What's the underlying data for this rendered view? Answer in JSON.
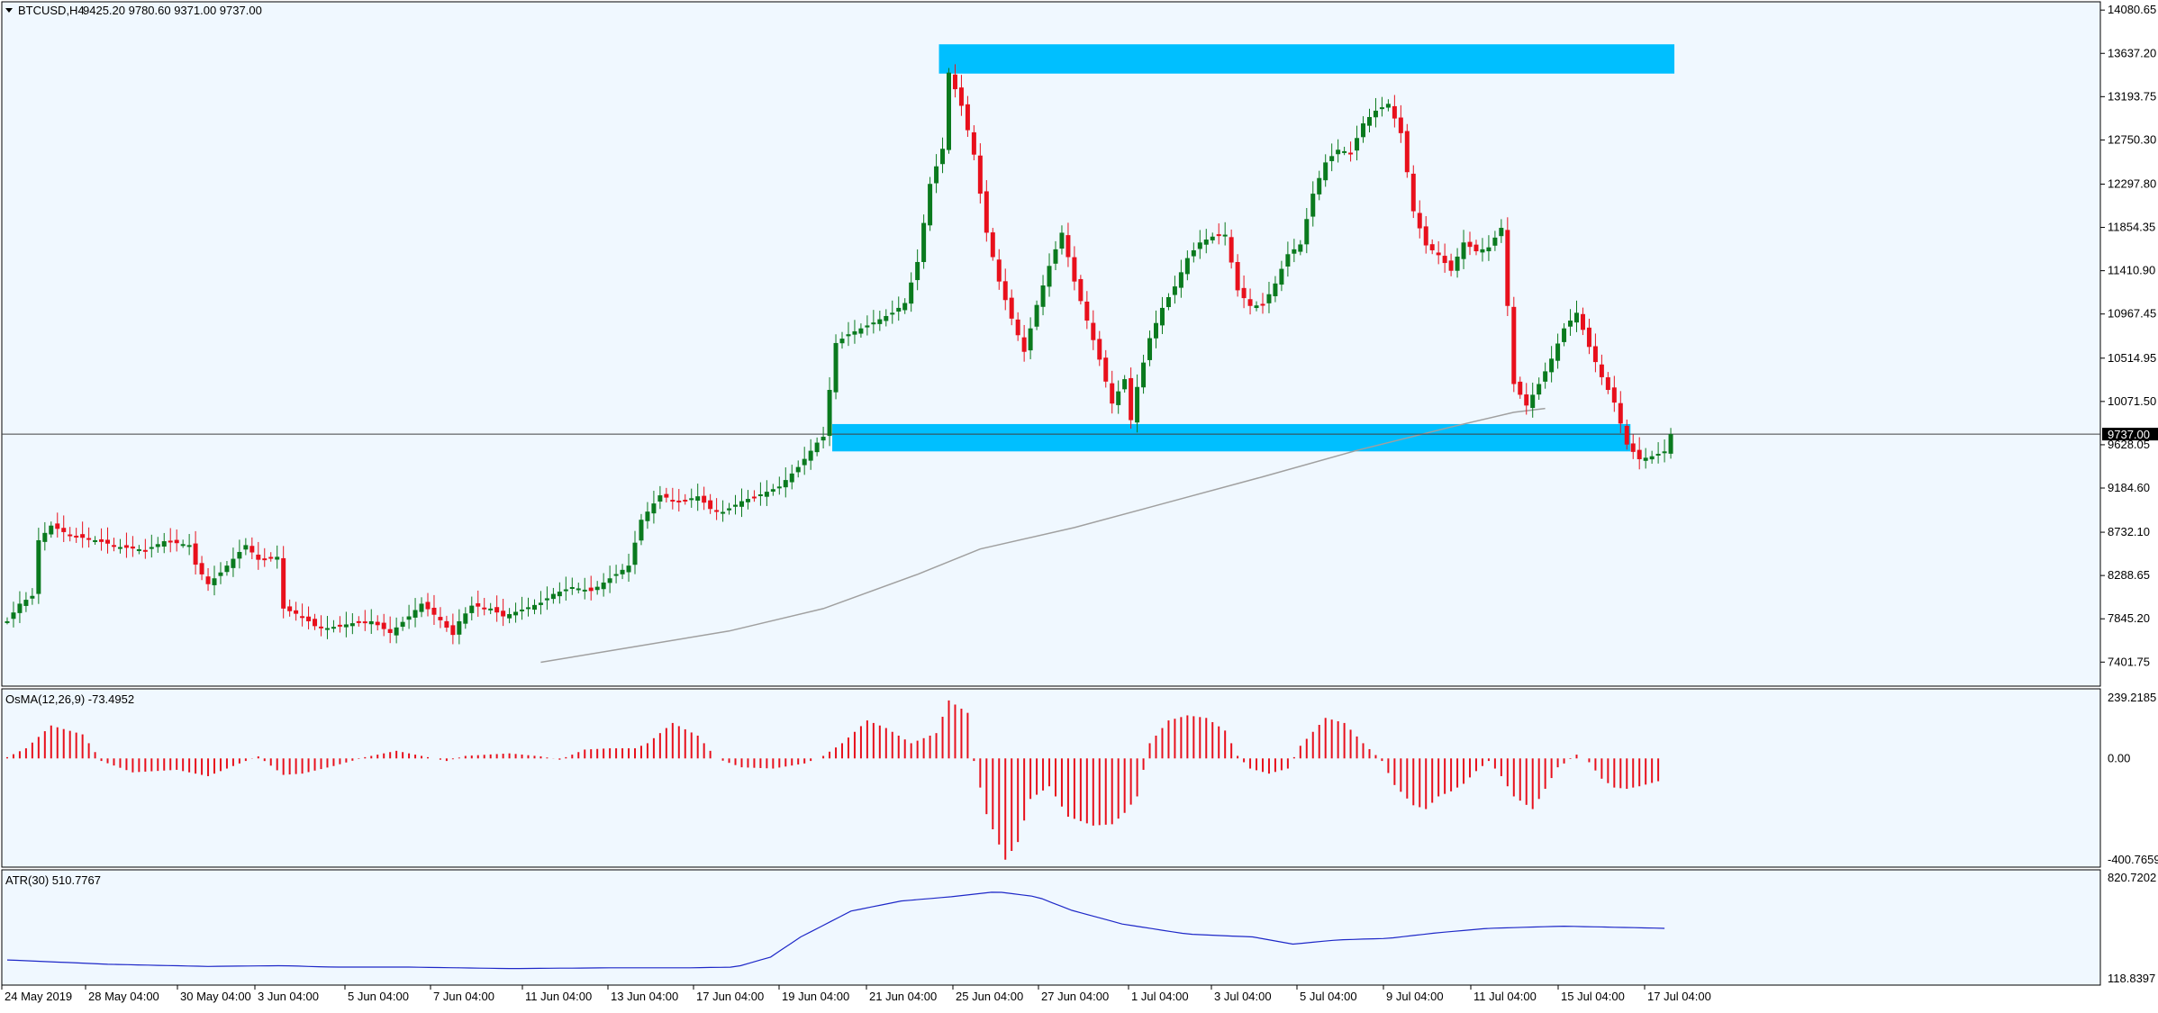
{
  "chart_data": [
    {
      "type": "candlestick",
      "title": "BTCUSD,H4",
      "ohlc_label": "9425.20 9780.60 9371.00 9737.00",
      "current_price": "9737.00",
      "y_ticks": [
        "14080.65",
        "13637.20",
        "13193.75",
        "12750.30",
        "12297.80",
        "11854.35",
        "11410.90",
        "10967.45",
        "10514.95",
        "10071.50",
        "9628.05",
        "9184.60",
        "8732.10",
        "8288.65",
        "7845.20",
        "7401.75"
      ],
      "ylim": [
        7220,
        14110
      ],
      "x_ticks": [
        "24 May 2019",
        "28 May 04:00",
        "30 May 04:00",
        "3 Jun 04:00",
        "5 Jun 04:00",
        "7 Jun 04:00",
        "11 Jun 04:00",
        "13 Jun 04:00",
        "17 Jun 04:00",
        "19 Jun 04:00",
        "21 Jun 04:00",
        "25 Jun 04:00",
        "27 Jun 04:00",
        "1 Jul 04:00",
        "3 Jul 04:00",
        "5 Jul 04:00",
        "9 Jul 04:00",
        "11 Jul 04:00",
        "15 Jul 04:00",
        "17 Jul 04:00"
      ],
      "zones": [
        {
          "y1": 13430,
          "y2": 13730,
          "bar_from": 149,
          "bar_to": 265
        },
        {
          "y1": 9560,
          "y2": 9840,
          "bar_from": 132,
          "bar_to": 258
        }
      ],
      "colors": {
        "up": "#0a7a1e",
        "down": "#e8101c",
        "zone": "#00bfff",
        "ma": "#a0a0a0",
        "bg": "#f0f8ff"
      },
      "moving_average": [
        [
          85,
          7400
        ],
        [
          100,
          7560
        ],
        [
          115,
          7720
        ],
        [
          130,
          7950
        ],
        [
          145,
          8300
        ],
        [
          155,
          8560
        ],
        [
          170,
          8780
        ],
        [
          185,
          9040
        ],
        [
          200,
          9300
        ],
        [
          215,
          9570
        ],
        [
          230,
          9810
        ],
        [
          240,
          9960
        ],
        [
          245,
          10000
        ]
      ],
      "series": [
        {
          "points": [
            [
              0,
              7820
            ],
            [
              2,
              8000
            ],
            [
              4,
              8080
            ],
            [
              5,
              8650
            ],
            [
              7,
              8800
            ],
            [
              10,
              8700
            ],
            [
              14,
              8650
            ],
            [
              18,
              8580
            ],
            [
              22,
              8550
            ],
            [
              25,
              8640
            ],
            [
              29,
              8600
            ],
            [
              30,
              8400
            ],
            [
              32,
              8200
            ],
            [
              34,
              8320
            ],
            [
              36,
              8460
            ],
            [
              38,
              8600
            ],
            [
              40,
              8450
            ],
            [
              43,
              8480
            ],
            [
              44,
              7950
            ],
            [
              47,
              7870
            ],
            [
              49,
              7770
            ],
            [
              51,
              7750
            ],
            [
              55,
              7800
            ],
            [
              58,
              7820
            ],
            [
              61,
              7700
            ],
            [
              64,
              7870
            ],
            [
              66,
              8000
            ],
            [
              69,
              7830
            ],
            [
              71,
              7680
            ],
            [
              72,
              7820
            ],
            [
              74,
              7980
            ],
            [
              77,
              7950
            ],
            [
              79,
              7870
            ],
            [
              82,
              7940
            ],
            [
              85,
              8010
            ],
            [
              87,
              8100
            ],
            [
              90,
              8170
            ],
            [
              93,
              8130
            ],
            [
              96,
              8260
            ],
            [
              99,
              8390
            ],
            [
              101,
              8860
            ],
            [
              104,
              9110
            ],
            [
              107,
              9040
            ],
            [
              110,
              9100
            ],
            [
              112,
              8970
            ],
            [
              114,
              8940
            ],
            [
              117,
              9050
            ],
            [
              120,
              9120
            ],
            [
              123,
              9200
            ],
            [
              126,
              9400
            ],
            [
              129,
              9650
            ],
            [
              130,
              9710
            ],
            [
              132,
              10670
            ],
            [
              134,
              10760
            ],
            [
              136,
              10820
            ],
            [
              138,
              10880
            ],
            [
              141,
              10980
            ],
            [
              143,
              11080
            ],
            [
              145,
              11500
            ],
            [
              147,
              12300
            ],
            [
              149,
              12660
            ],
            [
              150,
              13440
            ],
            [
              152,
              13100
            ],
            [
              154,
              12600
            ],
            [
              156,
              11800
            ],
            [
              158,
              11300
            ],
            [
              160,
              10920
            ],
            [
              162,
              10580
            ],
            [
              164,
              11060
            ],
            [
              166,
              11460
            ],
            [
              168,
              11800
            ],
            [
              170,
              11300
            ],
            [
              172,
              10900
            ],
            [
              174,
              10500
            ],
            [
              176,
              10050
            ],
            [
              178,
              10300
            ],
            [
              179,
              9880
            ],
            [
              180,
              10220
            ],
            [
              182,
              10720
            ],
            [
              184,
              11030
            ],
            [
              186,
              11250
            ],
            [
              188,
              11540
            ],
            [
              190,
              11700
            ],
            [
              192,
              11760
            ],
            [
              194,
              11780
            ],
            [
              196,
              11210
            ],
            [
              198,
              11050
            ],
            [
              200,
              11060
            ],
            [
              202,
              11280
            ],
            [
              204,
              11580
            ],
            [
              206,
              11680
            ],
            [
              208,
              12200
            ],
            [
              210,
              12520
            ],
            [
              212,
              12650
            ],
            [
              214,
              12620
            ],
            [
              216,
              12920
            ],
            [
              218,
              13050
            ],
            [
              220,
              13120
            ],
            [
              222,
              12820
            ],
            [
              224,
              12020
            ],
            [
              226,
              11670
            ],
            [
              228,
              11570
            ],
            [
              230,
              11410
            ],
            [
              232,
              11700
            ],
            [
              234,
              11610
            ],
            [
              236,
              11650
            ],
            [
              238,
              11850
            ],
            [
              240,
              10250
            ],
            [
              242,
              10030
            ],
            [
              244,
              10250
            ],
            [
              246,
              10510
            ],
            [
              248,
              10820
            ],
            [
              250,
              10980
            ],
            [
              252,
              10630
            ],
            [
              254,
              10320
            ],
            [
              256,
              10060
            ],
            [
              258,
              9630
            ],
            [
              260,
              9480
            ],
            [
              262,
              9510
            ],
            [
              264,
              9560
            ],
            [
              265,
              9737
            ]
          ]
        }
      ]
    },
    {
      "type": "bar",
      "title": "OsMA(12,26,9) -73.4952",
      "y_ticks": [
        "239.2185",
        "0.00",
        "-400.7659"
      ],
      "ylim": [
        -400.7659,
        239.2185
      ],
      "series": [
        {
          "points": [
            [
              0,
              5
            ],
            [
              3,
              40
            ],
            [
              7,
              130
            ],
            [
              12,
              95
            ],
            [
              15,
              -10
            ],
            [
              20,
              -55
            ],
            [
              27,
              -45
            ],
            [
              32,
              -70
            ],
            [
              38,
              -10
            ],
            [
              40,
              8
            ],
            [
              44,
              -65
            ],
            [
              47,
              -60
            ],
            [
              52,
              -30
            ],
            [
              57,
              5
            ],
            [
              62,
              30
            ],
            [
              66,
              10
            ],
            [
              70,
              -10
            ],
            [
              73,
              10
            ],
            [
              80,
              20
            ],
            [
              85,
              8
            ],
            [
              88,
              -5
            ],
            [
              92,
              35
            ],
            [
              96,
              40
            ],
            [
              100,
              40
            ],
            [
              102,
              60
            ],
            [
              106,
              140
            ],
            [
              110,
              90
            ],
            [
              113,
              0
            ],
            [
              117,
              -35
            ],
            [
              122,
              -40
            ],
            [
              127,
              -20
            ],
            [
              130,
              10
            ],
            [
              133,
              60
            ],
            [
              137,
              150
            ],
            [
              140,
              120
            ],
            [
              144,
              60
            ],
            [
              148,
              100
            ],
            [
              150,
              229
            ],
            [
              153,
              180
            ],
            [
              154,
              -10
            ],
            [
              156,
              -220
            ],
            [
              159,
              -400
            ],
            [
              161,
              -330
            ],
            [
              163,
              -160
            ],
            [
              166,
              -110
            ],
            [
              169,
              -230
            ],
            [
              173,
              -265
            ],
            [
              176,
              -260
            ],
            [
              178,
              -215
            ],
            [
              180,
              -150
            ],
            [
              182,
              60
            ],
            [
              185,
              150
            ],
            [
              188,
              170
            ],
            [
              191,
              160
            ],
            [
              194,
              110
            ],
            [
              196,
              10
            ],
            [
              198,
              -40
            ],
            [
              201,
              -60
            ],
            [
              204,
              -40
            ],
            [
              206,
              50
            ],
            [
              210,
              160
            ],
            [
              213,
              140
            ],
            [
              216,
              60
            ],
            [
              219,
              -10
            ],
            [
              221,
              -105
            ],
            [
              224,
              -185
            ],
            [
              226,
              -200
            ],
            [
              228,
              -150
            ],
            [
              230,
              -130
            ],
            [
              232,
              -100
            ],
            [
              234,
              -50
            ],
            [
              236,
              -10
            ],
            [
              238,
              -70
            ],
            [
              240,
              -150
            ],
            [
              243,
              -200
            ],
            [
              245,
              -120
            ],
            [
              247,
              -35
            ],
            [
              248,
              -20
            ],
            [
              250,
              15
            ],
            [
              252,
              -15
            ],
            [
              254,
              -80
            ],
            [
              256,
              -115
            ],
            [
              258,
              -120
            ],
            [
              260,
              -110
            ],
            [
              263,
              -90
            ]
          ]
        }
      ]
    },
    {
      "type": "line",
      "title": "ATR(30) 510.7767",
      "y_ticks": [
        "820.7202",
        "118.8397"
      ],
      "ylim": [
        118.8397,
        820.7202
      ],
      "series": [
        {
          "points": [
            [
              0,
              250
            ],
            [
              20,
              220
            ],
            [
              40,
              205
            ],
            [
              55,
              210
            ],
            [
              65,
              200
            ],
            [
              80,
              200
            ],
            [
              90,
              195
            ],
            [
              100,
              190
            ],
            [
              120,
              195
            ],
            [
              135,
              195
            ],
            [
              145,
              200
            ],
            [
              152,
              270
            ],
            [
              158,
              410
            ],
            [
              168,
              590
            ],
            [
              178,
              660
            ],
            [
              188,
              690
            ],
            [
              197,
              725
            ],
            [
              205,
              690
            ],
            [
              212,
              595
            ],
            [
              222,
              500
            ],
            [
              235,
              430
            ],
            [
              248,
              410
            ],
            [
              256,
              360
            ],
            [
              265,
              390
            ],
            [
              275,
              400
            ],
            [
              285,
              440
            ],
            [
              295,
              470
            ],
            [
              310,
              485
            ],
            [
              330,
              470
            ]
          ]
        }
      ]
    }
  ]
}
